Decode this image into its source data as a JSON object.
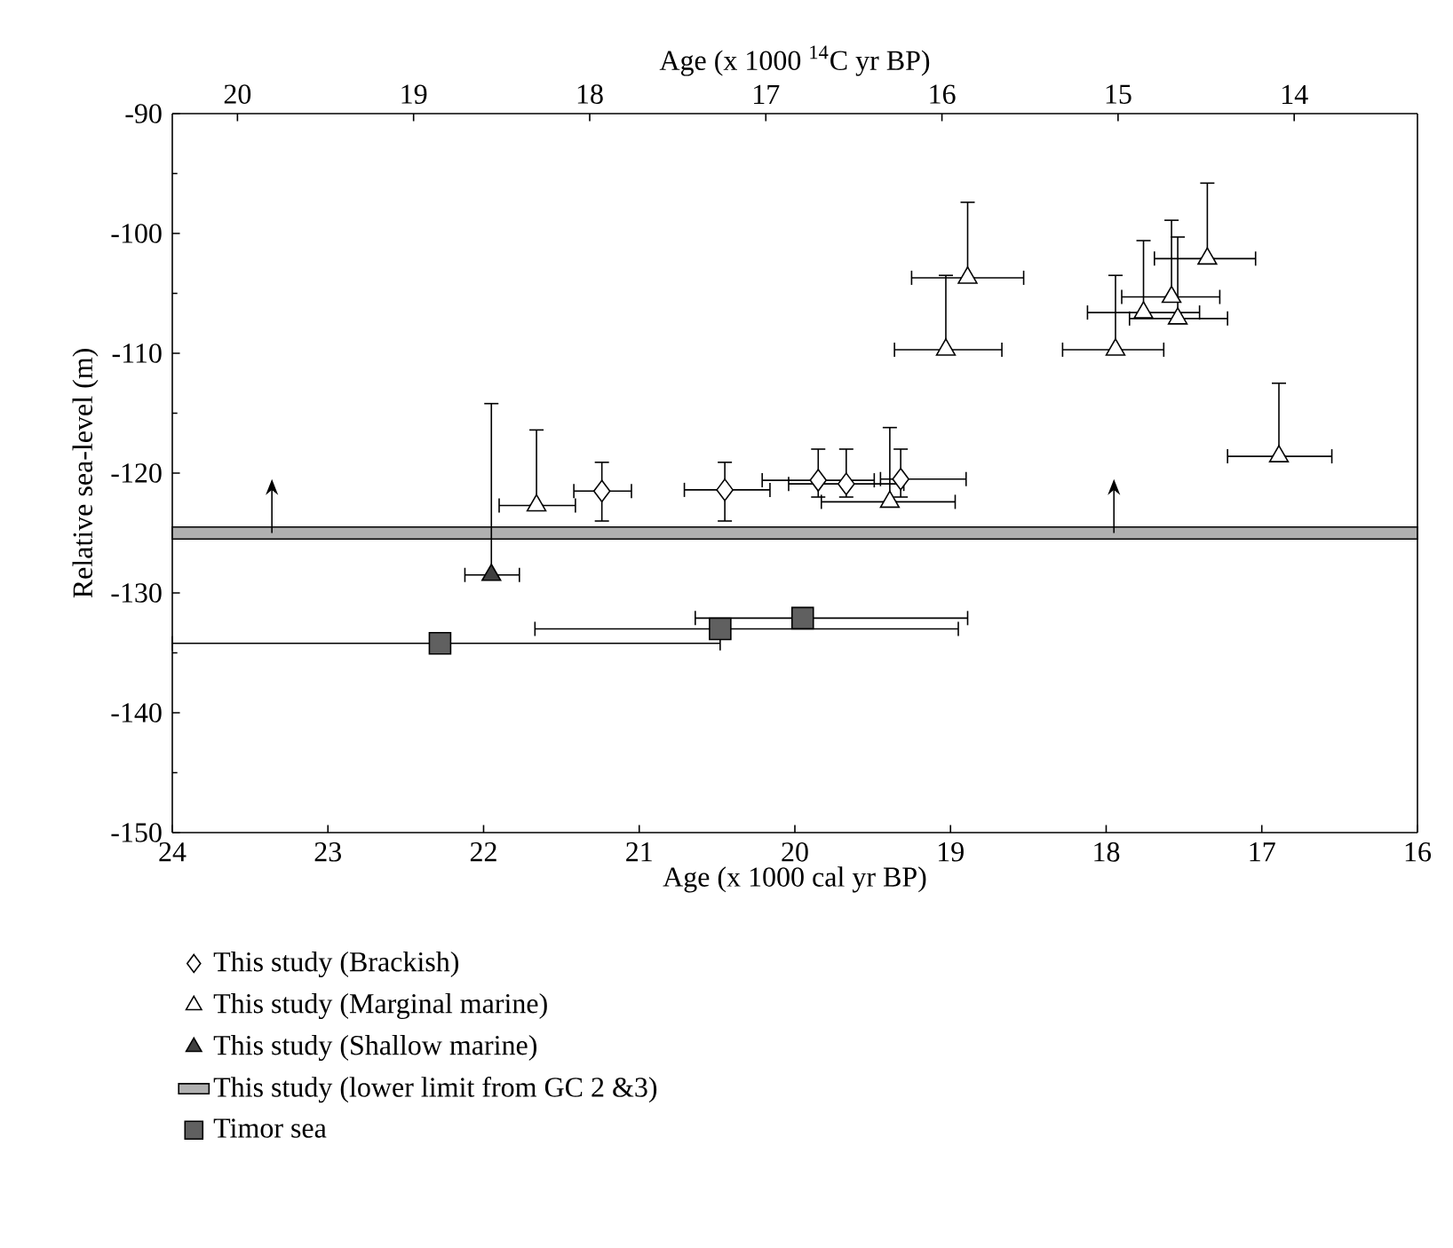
{
  "chart_data": {
    "type": "scatter",
    "xlabel": "Age (x 1000 cal yr BP)",
    "ylabel": "Relative sea-level (m)",
    "x2label": "Age (x 1000 $^{14}$C yr BP)",
    "xlim": [
      24,
      16
    ],
    "xticks": [
      24,
      23,
      22,
      21,
      20,
      19,
      18,
      17,
      16
    ],
    "ylim": [
      -150,
      -90
    ],
    "yticks": [
      -150,
      -140,
      -130,
      -120,
      -110,
      -100,
      -90
    ],
    "x2lim": [
      20.37,
      13.3
    ],
    "x2ticks": [
      20,
      19,
      18,
      17,
      16,
      15,
      14
    ],
    "legend": "bottom",
    "grid": false,
    "series": [
      {
        "name": "This study (Brackish)",
        "marker": "diamond",
        "color": "#ffffff",
        "x": [
          21.24,
          20.45,
          19.85,
          19.67,
          19.32
        ],
        "values": [
          -121.5,
          -121.4,
          -120.6,
          -120.9,
          -120.5
        ],
        "errors": [
          [
            -124.0,
            -119.1
          ],
          [
            -124.0,
            -119.1
          ],
          [
            -122.0,
            -118.0
          ],
          [
            -122.0,
            -118.0
          ],
          [
            -122.0,
            -118.0
          ]
        ],
        "xerrors": [
          [
            21.05,
            21.42
          ],
          [
            20.16,
            20.71
          ],
          [
            19.49,
            20.21
          ],
          [
            19.3,
            20.04
          ],
          [
            18.9,
            19.45
          ]
        ]
      },
      {
        "name": "This study (Marginal marine)",
        "marker": "triangle",
        "color": "#ffffff",
        "x": [
          21.66,
          19.39,
          18.89,
          19.03,
          17.94,
          17.76,
          17.58,
          17.54,
          17.35,
          16.89
        ],
        "values": [
          -122.7,
          -122.4,
          -103.7,
          -109.7,
          -109.7,
          -106.6,
          -105.3,
          -107.1,
          -102.1,
          -118.6
        ],
        "errors": [
          [
            -122.7,
            -116.4
          ],
          [
            -122.4,
            -116.2
          ],
          [
            -103.7,
            -97.4
          ],
          [
            -109.7,
            -103.5
          ],
          [
            -109.7,
            -103.5
          ],
          [
            -106.6,
            -100.6
          ],
          [
            -105.3,
            -98.9
          ],
          [
            -107.1,
            -100.3
          ],
          [
            -102.1,
            -95.8
          ],
          [
            -118.6,
            -112.5
          ]
        ],
        "xerrors": [
          [
            21.41,
            21.9
          ],
          [
            18.97,
            19.83
          ],
          [
            18.53,
            19.25
          ],
          [
            18.67,
            19.36
          ],
          [
            17.63,
            18.28
          ],
          [
            17.4,
            18.12
          ],
          [
            17.27,
            17.9
          ],
          [
            17.22,
            17.85
          ],
          [
            17.04,
            17.69
          ],
          [
            16.55,
            17.22
          ]
        ]
      },
      {
        "name": "This study (Shallow marine)",
        "marker": "triangle",
        "color": "#404040",
        "x": [
          21.95
        ],
        "values": [
          -128.5
        ],
        "errors": [
          [
            -128.5,
            -114.2
          ]
        ],
        "xerrors": [
          [
            21.77,
            22.12
          ]
        ]
      },
      {
        "name": "Timor sea",
        "marker": "square",
        "color": "#606060",
        "x": [
          22.28,
          20.48,
          19.95
        ],
        "values": [
          -134.2,
          -133.0,
          -132.1
        ],
        "errors": [
          null,
          null,
          null
        ],
        "xerrors": [
          [
            20.48,
            24.0
          ],
          [
            18.95,
            21.67
          ],
          [
            18.89,
            20.64
          ]
        ]
      }
    ],
    "bands": [
      {
        "axis": "y",
        "from": -125.5,
        "to": -124.5,
        "label": "This study (lower limit from GC 2 &3)",
        "color": "#b0b0b0"
      }
    ]
  }
}
